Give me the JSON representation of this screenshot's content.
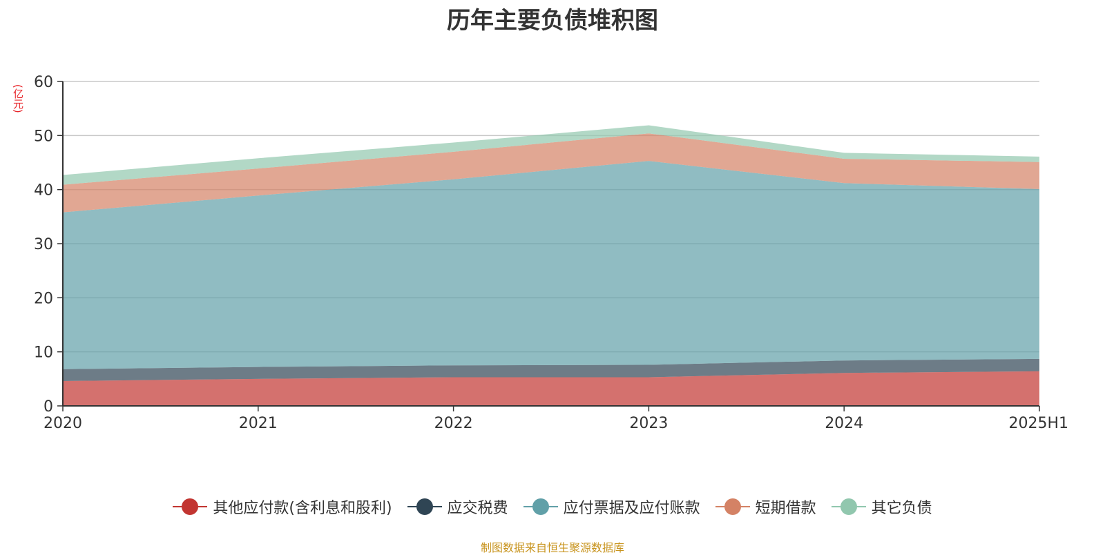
{
  "chart_data": {
    "type": "area",
    "stacked": true,
    "title": "历年主要负债堆积图",
    "ylabel": "(亿元)",
    "categories": [
      "2020",
      "2021",
      "2022",
      "2023",
      "2024",
      "2025H1"
    ],
    "ylim": [
      0,
      60
    ],
    "yticks": [
      0,
      10,
      20,
      30,
      40,
      50,
      60
    ],
    "grid": true,
    "legend_position": "bottom",
    "series": [
      {
        "name": "其他应付款(含利息和股利)",
        "color": "#c23531",
        "values": [
          4.6,
          5.0,
          5.3,
          5.3,
          6.1,
          6.4
        ]
      },
      {
        "name": "应交税费",
        "color": "#2f4554",
        "values": [
          2.2,
          2.2,
          2.2,
          2.3,
          2.3,
          2.3
        ]
      },
      {
        "name": "应付票据及应付账款",
        "color": "#61a0a8",
        "values": [
          29.0,
          31.7,
          34.4,
          37.7,
          32.8,
          31.4
        ]
      },
      {
        "name": "短期借款",
        "color": "#d48265",
        "values": [
          5.1,
          5.0,
          5.1,
          5.1,
          4.5,
          5.0
        ]
      },
      {
        "name": "其它负债",
        "color": "#91c7ae",
        "values": [
          1.8,
          1.9,
          1.7,
          1.5,
          1.1,
          1.0
        ]
      }
    ]
  },
  "footer": {
    "source": "制图数据来自恒生聚源数据库"
  }
}
